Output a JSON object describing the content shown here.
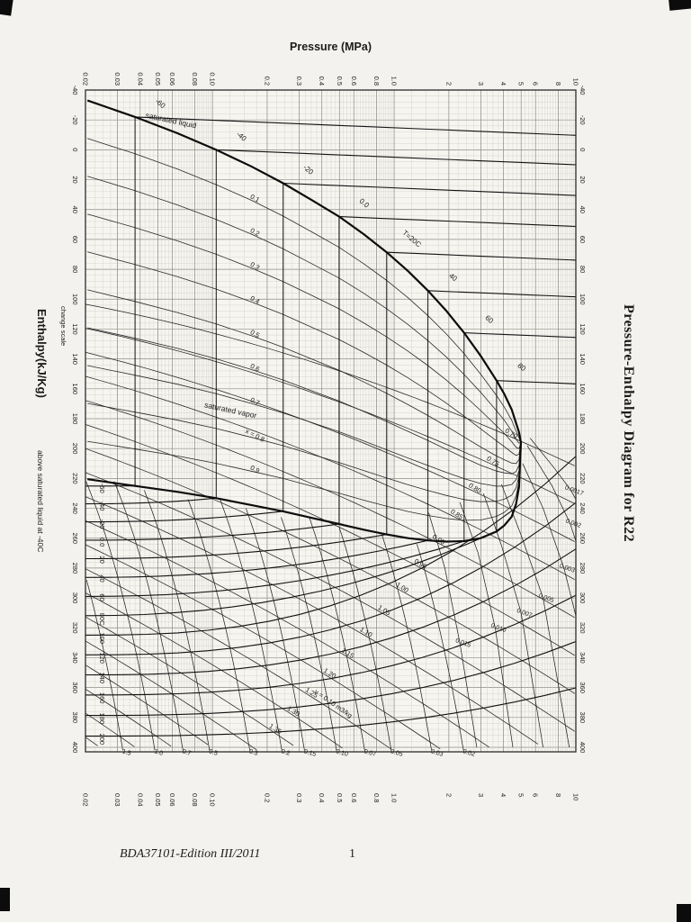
{
  "page": {
    "footer_left": "BDA37101-Edition III/2011",
    "footer_page": "1"
  },
  "chart_data": {
    "type": "line",
    "chart_kind": "pressure-enthalpy-diagram",
    "refrigerant": "R22",
    "title": "Pressure-Enthalpy Diagram for R22",
    "orientation_note": "chart printed rotated 90 degrees on the page",
    "pressure_axis": {
      "label": "Pressure (MPa)",
      "scale": "log",
      "range": [
        0.02,
        10
      ],
      "tick_labels": [
        "0.02",
        "0.03",
        "0.04",
        "0.05",
        "0.06",
        "0.08",
        "0.10",
        "0.2",
        "0.3",
        "0.4",
        "0.5",
        "0.6",
        "0.8",
        "1.0",
        "2",
        "3",
        "4",
        "5",
        "6",
        "8",
        "10"
      ],
      "tick_values": [
        0.02,
        0.03,
        0.04,
        0.05,
        0.06,
        0.08,
        0.1,
        0.2,
        0.3,
        0.4,
        0.5,
        0.6,
        0.8,
        1.0,
        2,
        3,
        4,
        5,
        6,
        8,
        10
      ]
    },
    "enthalpy_axis": {
      "label_main": "Enthalpy(kJ/Kg)",
      "label_sub": "above saturated liquid at -40C",
      "note": "change scale",
      "range": [
        -40,
        400
      ],
      "tick_labels": [
        "-40",
        "-20",
        "0",
        "20",
        "40",
        "60",
        "80",
        "100",
        "120",
        "140",
        "160",
        "180",
        "200",
        "220",
        "240",
        "260",
        "280",
        "300",
        "320",
        "340",
        "360",
        "380",
        "400"
      ],
      "tick_values": [
        -40,
        -20,
        0,
        20,
        40,
        60,
        80,
        100,
        120,
        140,
        160,
        180,
        200,
        220,
        240,
        260,
        280,
        300,
        320,
        340,
        360,
        380,
        400
      ]
    },
    "saturation": {
      "liquid_label": "saturated liquid",
      "vapor_label": "saturated vapor",
      "table": {
        "T_C": [
          -70,
          -60,
          -50,
          -40,
          -30,
          -20,
          -10,
          0,
          10,
          20,
          30,
          40,
          50,
          60,
          70,
          80,
          85,
          90,
          93,
          95,
          96
        ],
        "P_MPa": [
          0.0205,
          0.0375,
          0.0644,
          0.1049,
          0.1635,
          0.2448,
          0.3543,
          0.4976,
          0.6807,
          0.9099,
          1.1919,
          1.5335,
          1.9423,
          2.4266,
          2.9959,
          3.6616,
          4.037,
          4.4379,
          4.691,
          4.8645,
          4.99
        ],
        "h_liquid": [
          -33,
          -22,
          -11,
          0,
          11.1,
          22.4,
          33.9,
          44.7,
          56.5,
          68.6,
          81.2,
          94.3,
          108,
          122.5,
          138,
          154.5,
          163.5,
          174,
          183,
          189,
          196
        ],
        "h_vapor": [
          220.5,
          225,
          229,
          233.2,
          237.8,
          242,
          246.5,
          250.5,
          254.3,
          257.5,
          260,
          261.5,
          262.3,
          262,
          260,
          255.5,
          251.5,
          245.5,
          237,
          226,
          196
        ]
      }
    },
    "isotherms_C": {
      "superheat_edge_values": [
        -60,
        -40,
        -20,
        0,
        20,
        40,
        60,
        80,
        100,
        120,
        140,
        160,
        180,
        200
      ],
      "superheat_edge_labels": [
        "-60",
        "-40",
        "-20",
        "0.0",
        "20",
        "40",
        "60",
        "80C",
        "100",
        "120",
        "140",
        "160",
        "180",
        "200"
      ],
      "liquid_side_values": [
        -60,
        -40,
        -20,
        0,
        20,
        40,
        60,
        80
      ],
      "liquid_side_labels": [
        "-60",
        "-40",
        "-20",
        "0.0",
        "T=20C",
        "40",
        "60",
        "80"
      ]
    },
    "quality_lines": {
      "values": [
        0.1,
        0.2,
        0.3,
        0.4,
        0.5,
        0.6,
        0.7,
        0.8,
        0.9
      ],
      "labels": [
        "0.1",
        "0.2",
        "0.3",
        "0.4",
        "0.5",
        "0.6",
        "0.7",
        "x = 0.8",
        "0.9"
      ]
    },
    "entropy_lines_kJ_per_kgK": {
      "values": [
        0.7,
        0.75,
        0.8,
        0.85,
        0.9,
        0.95,
        1.0,
        1.05,
        1.1,
        1.15,
        1.2,
        1.25,
        1.3,
        1.35,
        1.4,
        1.45,
        1.5,
        1.55,
        1.6
      ],
      "labels": [
        "0.70",
        "0.75",
        "0.80",
        "0.85",
        "0.90",
        "0.95",
        "1.00",
        "1.05",
        "1.10",
        "1.15",
        "1.20",
        "1.25",
        "1.30",
        "1.35",
        "s = 1.40 kJ/kg K",
        "1.45",
        "1.50",
        "1.55",
        "1.60"
      ]
    },
    "volume_lines_m3_per_kg": {
      "vapor_values": [
        1.5,
        1.0,
        0.7,
        0.5,
        0.3,
        0.2,
        0.15,
        0.1,
        0.07,
        0.05,
        0.03,
        0.02
      ],
      "vapor_labels": [
        "1.5",
        "1.0",
        "0.7",
        "0.5",
        "0.3",
        "0.2",
        "0.15",
        "0.10",
        "0.07",
        "0.05",
        "0.03",
        "0.02"
      ],
      "special_value": 0.1,
      "special_label": "v = 0.10 m3/kg",
      "dense_lines": [
        {
          "v": "0.015",
          "points": [
            [
              243,
              1.55
            ],
            [
              280,
              1.9
            ],
            [
              330,
              2.3
            ],
            [
              400,
              2.85
            ]
          ]
        },
        {
          "v": "0.010",
          "points": [
            [
              236,
              2.3
            ],
            [
              270,
              2.9
            ],
            [
              320,
              3.6
            ],
            [
              400,
              4.5
            ]
          ]
        },
        {
          "v": "0.007",
          "points": [
            [
              230,
              3.1
            ],
            [
              265,
              3.9
            ],
            [
              310,
              5.0
            ],
            [
              400,
              6.6
            ]
          ]
        },
        {
          "v": "0.005",
          "points": [
            [
              224,
              3.9
            ],
            [
              258,
              5.0
            ],
            [
              300,
              6.6
            ],
            [
              400,
              9.2
            ]
          ]
        },
        {
          "v": "0.003",
          "points": [
            [
              210,
              5.1
            ],
            [
              240,
              6.6
            ],
            [
              280,
              8.6
            ],
            [
              312,
              10
            ]
          ]
        },
        {
          "v": "0.002",
          "points": [
            [
              198,
              5.4
            ],
            [
              225,
              7.4
            ],
            [
              250,
              9.3
            ],
            [
              262,
              10
            ]
          ]
        },
        {
          "v": "0.0017",
          "points": [
            [
              193,
              5.6
            ],
            [
              213,
              7.6
            ],
            [
              228,
              9.4
            ],
            [
              234,
              10
            ]
          ]
        }
      ]
    }
  }
}
